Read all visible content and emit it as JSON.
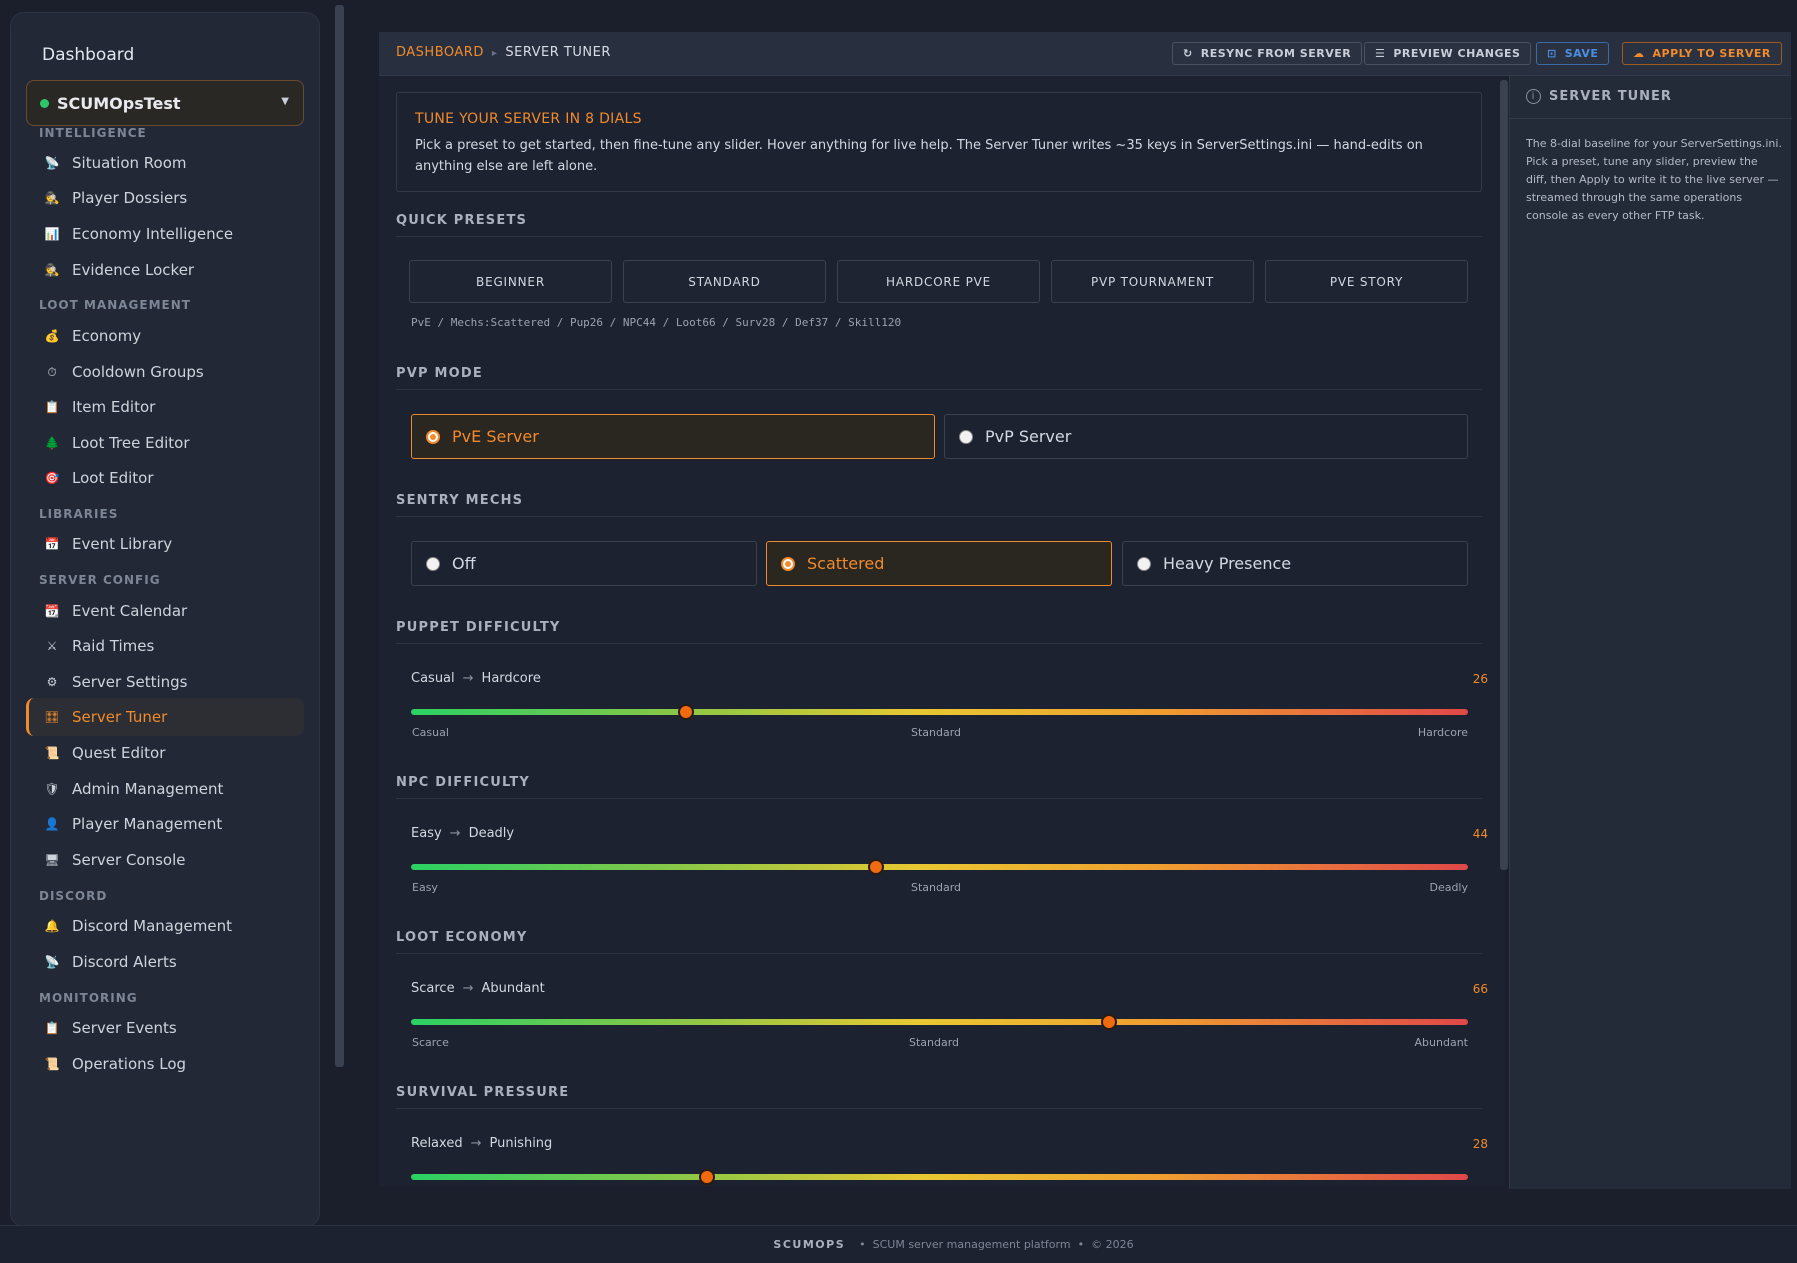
{
  "sidebar": {
    "dashboard": "Dashboard",
    "server": "SCUMOpsTest",
    "sections": {
      "intelligence": "INTELLIGENCE",
      "loot": "LOOT MANAGEMENT",
      "libraries": "LIBRARIES",
      "server_config": "SERVER CONFIG",
      "discord": "DISCORD",
      "monitoring": "MONITORING"
    },
    "items": {
      "situation_room": "Situation Room",
      "player_dossiers": "Player Dossiers",
      "economy_intelligence": "Economy Intelligence",
      "evidence_locker": "Evidence Locker",
      "economy": "Economy",
      "cooldown_groups": "Cooldown Groups",
      "item_editor": "Item Editor",
      "loot_tree_editor": "Loot Tree Editor",
      "loot_editor": "Loot Editor",
      "event_library": "Event Library",
      "event_calendar": "Event Calendar",
      "raid_times": "Raid Times",
      "server_settings": "Server Settings",
      "server_tuner": "Server Tuner",
      "quest_editor": "Quest Editor",
      "admin_management": "Admin Management",
      "player_management": "Player Management",
      "server_console": "Server Console",
      "discord_management": "Discord Management",
      "discord_alerts": "Discord Alerts",
      "server_events": "Server Events",
      "operations_log": "Operations Log"
    }
  },
  "header": {
    "breadcrumb_root": "DASHBOARD",
    "breadcrumb_current": "SERVER TUNER",
    "resync": "RESYNC FROM SERVER",
    "preview": "PREVIEW CHANGES",
    "save": "SAVE",
    "apply": "APPLY TO SERVER"
  },
  "intro": {
    "title": "TUNE YOUR SERVER IN 8 DIALS",
    "body": "Pick a preset to get started, then fine-tune any slider. Hover anything for live help. The Server Tuner writes ~35 keys in ServerSettings.ini — hand-edits on anything else are left alone."
  },
  "presets": {
    "title": "QUICK PRESETS",
    "items": [
      "BEGINNER",
      "STANDARD",
      "HARDCORE PVE",
      "PVP TOURNAMENT",
      "PVE STORY"
    ],
    "summary": "PvE / Mechs:Scattered / Pup26 / NPC44 / Loot66 / Surv28 / Def37 / Skill120"
  },
  "pvp_mode": {
    "title": "PVP MODE",
    "options": [
      "PvE Server",
      "PvP Server"
    ],
    "selected": "PvE Server"
  },
  "sentry_mechs": {
    "title": "SENTRY MECHS",
    "options": [
      "Off",
      "Scattered",
      "Heavy Presence"
    ],
    "selected": "Scattered"
  },
  "sliders": {
    "puppet": {
      "title": "PUPPET DIFFICULTY",
      "low": "Casual",
      "high": "Hardcore",
      "mid": "Standard",
      "value": "26"
    },
    "npc": {
      "title": "NPC DIFFICULTY",
      "low": "Easy",
      "high": "Deadly",
      "mid": "Standard",
      "value": "44"
    },
    "loot": {
      "title": "LOOT ECONOMY",
      "low": "Scarce",
      "high": "Abundant",
      "mid": "Standard",
      "value": "66"
    },
    "survival": {
      "title": "SURVIVAL PRESSURE",
      "low": "Relaxed",
      "high": "Punishing",
      "value": "28"
    }
  },
  "help": {
    "title": "SERVER TUNER",
    "body": "The 8-dial baseline for your ServerSettings.ini. Pick a preset, tune any slider, preview the diff, then Apply to write it to the live server — streamed through the same operations console as every other FTP task."
  },
  "footer": {
    "brand": "SCUMOPS",
    "tagline": "SCUM server management platform",
    "copyright": "© 2026"
  },
  "colors": {
    "accent": "#f08a2c",
    "online": "#2ec66b",
    "save": "#4a8fe0"
  }
}
